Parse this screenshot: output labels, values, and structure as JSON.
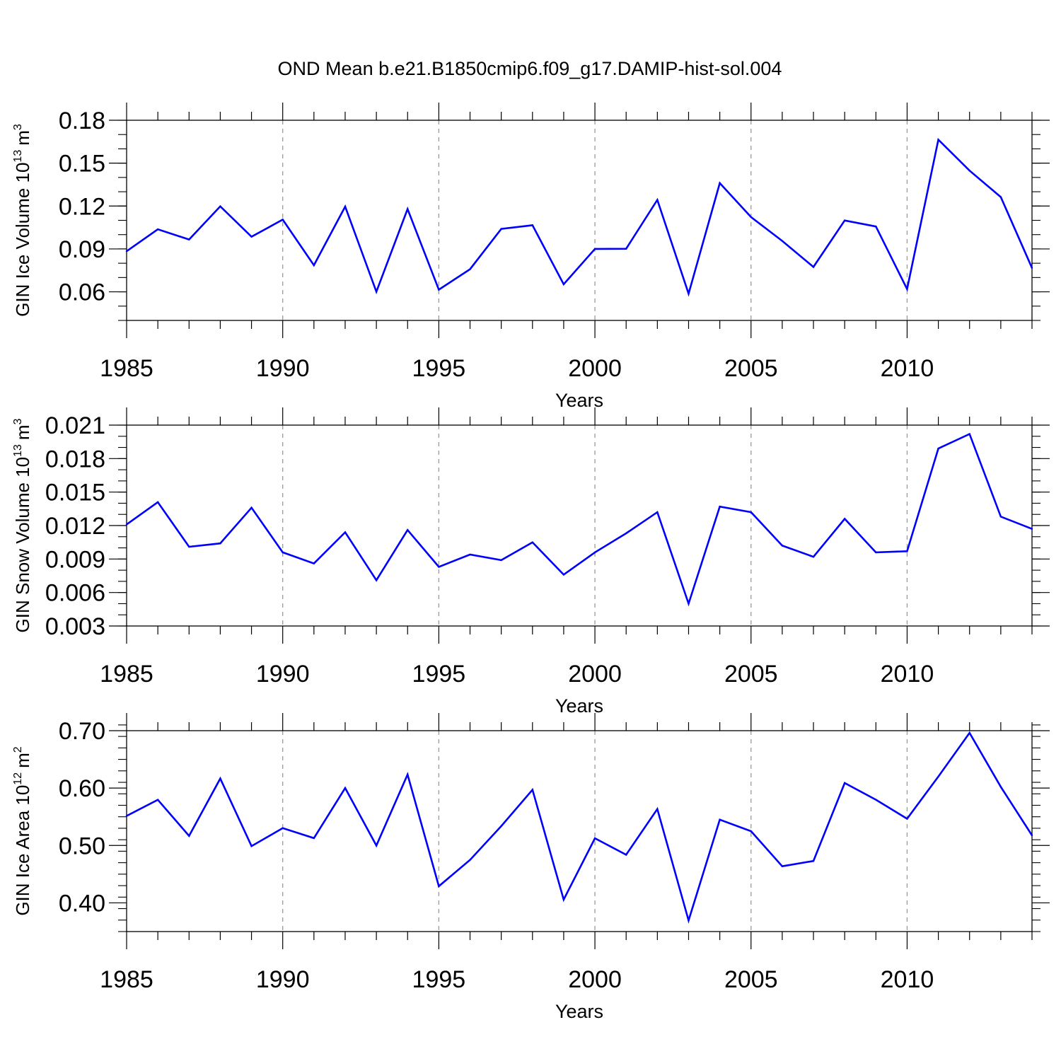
{
  "title": "OND Mean b.e21.B1850cmip6.f09_g17.DAMIP-hist-sol.004",
  "chart_data": [
    {
      "type": "line",
      "title": "",
      "xlabel": "Years",
      "ylabel": "GIN Ice Volume 10",
      "ylabel_exp": "13",
      "ylabel_unit": "m",
      "ylabel_unit_exp": "3",
      "xlim": [
        1985,
        2014
      ],
      "ylim": [
        0.04,
        0.18
      ],
      "yticks": [
        "0.06",
        "0.09",
        "0.12",
        "0.15",
        "0.18"
      ],
      "xticks": [
        "1985",
        "1990",
        "1995",
        "2000",
        "2005",
        "2010"
      ],
      "line_color": "#0000ff",
      "x": [
        1985,
        1986,
        1987,
        1988,
        1989,
        1990,
        1991,
        1992,
        1993,
        1994,
        1995,
        1996,
        1997,
        1998,
        1999,
        2000,
        2001,
        2002,
        2003,
        2004,
        2005,
        2006,
        2007,
        2008,
        2009,
        2010,
        2011,
        2012,
        2013,
        2014
      ],
      "values": [
        0.0884,
        0.1037,
        0.0966,
        0.1198,
        0.0985,
        0.1105,
        0.0786,
        0.1196,
        0.0601,
        0.1179,
        0.0615,
        0.0758,
        0.104,
        0.1066,
        0.0653,
        0.09,
        0.0901,
        0.1243,
        0.0587,
        0.136,
        0.1123,
        0.0956,
        0.0774,
        0.1099,
        0.1057,
        0.0619,
        0.1664,
        0.1448,
        0.1263,
        0.0767
      ]
    },
    {
      "type": "line",
      "title": "",
      "xlabel": "Years",
      "ylabel": "GIN Snow Volume 10",
      "ylabel_exp": "13",
      "ylabel_unit": "m",
      "ylabel_unit_exp": "3",
      "xlim": [
        1985,
        2014
      ],
      "ylim": [
        0.003,
        0.021
      ],
      "yticks": [
        "0.003",
        "0.006",
        "0.009",
        "0.012",
        "0.015",
        "0.018",
        "0.021"
      ],
      "xticks": [
        "1985",
        "1990",
        "1995",
        "2000",
        "2005",
        "2010"
      ],
      "line_color": "#0000ff",
      "x": [
        1985,
        1986,
        1987,
        1988,
        1989,
        1990,
        1991,
        1992,
        1993,
        1994,
        1995,
        1996,
        1997,
        1998,
        1999,
        2000,
        2001,
        2002,
        2003,
        2004,
        2005,
        2006,
        2007,
        2008,
        2009,
        2010,
        2011,
        2012,
        2013,
        2014
      ],
      "values": [
        0.0121,
        0.0141,
        0.0101,
        0.0104,
        0.0136,
        0.0096,
        0.0086,
        0.0114,
        0.0071,
        0.0116,
        0.0083,
        0.0094,
        0.0089,
        0.0105,
        0.0076,
        0.0096,
        0.0113,
        0.0132,
        0.005,
        0.0137,
        0.0132,
        0.0102,
        0.0092,
        0.0126,
        0.0096,
        0.0097,
        0.0189,
        0.0202,
        0.0128,
        0.0117
      ]
    },
    {
      "type": "line",
      "title": "",
      "xlabel": "Years",
      "ylabel": "GIN Ice Area 10",
      "ylabel_exp": "12",
      "ylabel_unit": "m",
      "ylabel_unit_exp": "2",
      "xlim": [
        1985,
        2014
      ],
      "ylim": [
        0.35,
        0.7
      ],
      "yticks": [
        "0.40",
        "0.50",
        "0.60",
        "0.70"
      ],
      "xticks": [
        "1985",
        "1990",
        "1995",
        "2000",
        "2005",
        "2010"
      ],
      "line_color": "#0000ff",
      "x": [
        1985,
        1986,
        1987,
        1988,
        1989,
        1990,
        1991,
        1992,
        1993,
        1994,
        1995,
        1996,
        1997,
        1998,
        1999,
        2000,
        2001,
        2002,
        2003,
        2004,
        2005,
        2006,
        2007,
        2008,
        2009,
        2010,
        2011,
        2012,
        2013,
        2014
      ],
      "values": [
        0.5515,
        0.5796,
        0.5167,
        0.6166,
        0.4989,
        0.5302,
        0.5128,
        0.6,
        0.4998,
        0.6236,
        0.429,
        0.4749,
        0.5338,
        0.5971,
        0.4057,
        0.5126,
        0.4838,
        0.5634,
        0.3694,
        0.545,
        0.5249,
        0.4638,
        0.473,
        0.6088,
        0.5797,
        0.5466,
        0.62,
        0.6962,
        0.6021,
        0.5176
      ]
    }
  ]
}
